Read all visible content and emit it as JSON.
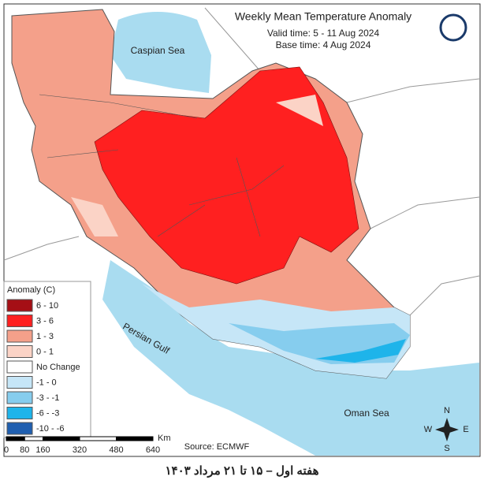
{
  "map": {
    "title": "Weekly Mean Temperature Anomaly",
    "valid_time": "Valid time: 5 - 11 Aug 2024",
    "base_time": "Base time: 4 Aug 2024",
    "labels": {
      "caspian": "Caspian Sea",
      "gulf": "Persian Gulf",
      "oman": "Oman Sea"
    },
    "legend": {
      "title": "Anomaly (C)",
      "items": [
        {
          "label": "6 - 10",
          "color": "#a50f15"
        },
        {
          "label": "3 - 6",
          "color": "#ff2020"
        },
        {
          "label": "1 - 3",
          "color": "#f4a08a"
        },
        {
          "label": "0 - 1",
          "color": "#fbd3c6"
        },
        {
          "label": "No Change",
          "color": "#ffffff"
        },
        {
          "label": "-1 - 0",
          "color": "#c6e6f7"
        },
        {
          "label": "-3 - -1",
          "color": "#86cdee"
        },
        {
          "label": "-6 - -3",
          "color": "#1eb4ea"
        },
        {
          "label": "-10 - -6",
          "color": "#1f5fb0"
        }
      ]
    },
    "scale": {
      "ticks": [
        0,
        80,
        160,
        320,
        480,
        640
      ],
      "unit": "Km"
    },
    "source": "Source: ECMWF",
    "compass": {
      "n": "N",
      "e": "E",
      "s": "S",
      "w": "W"
    },
    "footer": "هفته اول – ۱۵ تا ۲۱ مرداد ۱۴۰۳"
  }
}
